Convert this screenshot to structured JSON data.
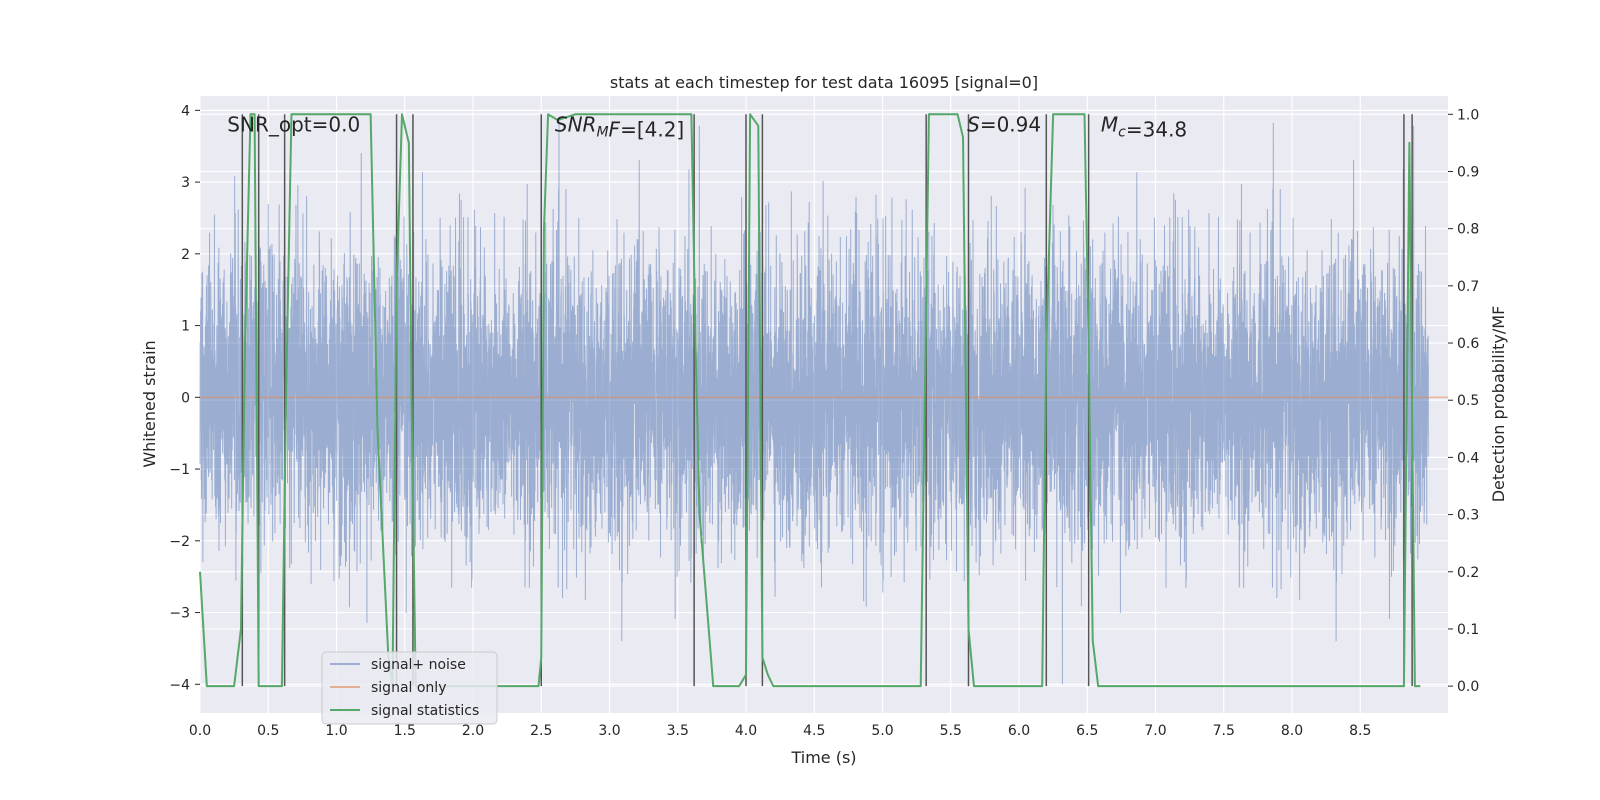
{
  "chart_data": {
    "type": "line",
    "title": "stats at each timestep for test data 16095 [signal=0]",
    "xlabel": "Time (s)",
    "ylabel": "Whitened strain",
    "y2label": "Detection probability/MF",
    "xlim": [
      0.0,
      9.0
    ],
    "ylim": [
      -4.4,
      4.2
    ],
    "y2lim": [
      -0.047,
      1.032
    ],
    "xticks": [
      "0.0",
      "0.5",
      "1.0",
      "1.5",
      "2.0",
      "2.5",
      "3.0",
      "3.5",
      "4.0",
      "4.5",
      "5.0",
      "5.5",
      "6.0",
      "6.5",
      "7.0",
      "7.5",
      "8.0",
      "8.5"
    ],
    "xtick_values": [
      0.0,
      0.5,
      1.0,
      1.5,
      2.0,
      2.5,
      3.0,
      3.5,
      4.0,
      4.5,
      5.0,
      5.5,
      6.0,
      6.5,
      7.0,
      7.5,
      8.0,
      8.5
    ],
    "yticks": [
      "−4",
      "−3",
      "−2",
      "−1",
      "0",
      "1",
      "2",
      "3",
      "4"
    ],
    "ytick_values": [
      -4,
      -3,
      -2,
      -1,
      0,
      1,
      2,
      3,
      4
    ],
    "y2ticks": [
      "0.0",
      "0.1",
      "0.2",
      "0.3",
      "0.4",
      "0.5",
      "0.6",
      "0.7",
      "0.8",
      "0.9",
      "1.0"
    ],
    "y2tick_values": [
      0.0,
      0.1,
      0.2,
      0.3,
      0.4,
      0.5,
      0.6,
      0.7,
      0.8,
      0.9,
      1.0
    ],
    "legend": {
      "location": "lower-left",
      "entries": [
        "signal+ noise",
        "signal only",
        "signal statistics"
      ]
    },
    "annotations": [
      {
        "text": "SNR_opt=0.0",
        "x": 0.2,
        "y": 3.8
      },
      {
        "segments": [
          {
            "t": "SNR",
            "style": "italic"
          },
          {
            "t": "M",
            "style": "italic-sub"
          },
          {
            "t": "F",
            "style": "italic"
          },
          {
            "t": "=[4.2]",
            "style": "normal"
          }
        ],
        "x": 2.6,
        "y": 3.8
      },
      {
        "segments": [
          {
            "t": "S",
            "style": "italic"
          },
          {
            "t": "=0.94",
            "style": "normal"
          }
        ],
        "x": 5.62,
        "y": 3.8
      },
      {
        "segments": [
          {
            "t": "M",
            "style": "italic"
          },
          {
            "t": "c",
            "style": "italic-sub"
          },
          {
            "t": "=34.8",
            "style": "normal"
          }
        ],
        "x": 6.6,
        "y": 3.8
      }
    ],
    "noise": {
      "name": "signal+ noise",
      "description": "whitened gaussian noise, sigma ~1.0, spikes up to about +3.8 / -3.7",
      "samples": 9000,
      "sigma": 1.0
    },
    "signal_only": {
      "name": "signal only",
      "value": 0.0
    },
    "vertical_lines": [
      0.31,
      0.43,
      0.62,
      1.44,
      1.56,
      2.5,
      3.62,
      4.0,
      4.12,
      5.32,
      5.63,
      6.2,
      6.51,
      8.82,
      8.88
    ],
    "series": [
      {
        "name": "signal statistics",
        "axis": "right",
        "x": [
          0.0,
          0.05,
          0.12,
          0.25,
          0.3,
          0.33,
          0.37,
          0.4,
          0.43,
          0.46,
          0.5,
          0.6,
          0.63,
          0.67,
          0.7,
          0.9,
          1.0,
          1.1,
          1.25,
          1.3,
          1.38,
          1.41,
          1.44,
          1.48,
          1.5,
          1.53,
          1.55,
          1.58,
          1.62,
          1.7,
          1.8,
          2.0,
          2.2,
          2.4,
          2.48,
          2.5,
          2.52,
          2.55,
          2.62,
          2.75,
          2.8,
          3.0,
          3.2,
          3.4,
          3.6,
          3.63,
          3.66,
          3.76,
          3.8,
          3.95,
          4.0,
          4.03,
          4.06,
          4.09,
          4.12,
          4.16,
          4.2,
          4.25,
          4.35,
          4.5,
          5.0,
          5.28,
          5.31,
          5.34,
          5.38,
          5.55,
          5.59,
          5.63,
          5.67,
          5.75,
          6.0,
          6.17,
          6.2,
          6.25,
          6.4,
          6.48,
          6.51,
          6.54,
          6.58,
          6.7,
          7.0,
          7.5,
          8.0,
          8.3,
          8.5,
          8.82,
          8.86,
          8.9,
          8.94
        ],
        "values": [
          0.2,
          0.0,
          0.0,
          0.0,
          0.1,
          0.6,
          1.0,
          1.0,
          0.0,
          0.0,
          0.0,
          0.0,
          0.5,
          1.0,
          1.0,
          1.0,
          1.0,
          1.0,
          1.0,
          0.45,
          0.05,
          0.0,
          0.7,
          1.0,
          0.98,
          0.95,
          0.5,
          0.0,
          0.0,
          0.0,
          0.0,
          0.0,
          0.0,
          0.0,
          0.0,
          0.05,
          0.8,
          1.0,
          0.99,
          1.0,
          1.0,
          1.0,
          1.0,
          1.0,
          1.0,
          0.6,
          0.3,
          0.0,
          0.0,
          0.0,
          0.02,
          1.0,
          0.99,
          0.98,
          0.05,
          0.02,
          0.0,
          0.0,
          0.0,
          0.0,
          0.0,
          0.0,
          0.5,
          1.0,
          1.0,
          1.0,
          0.96,
          0.1,
          0.0,
          0.0,
          0.0,
          0.0,
          0.6,
          1.0,
          1.0,
          1.0,
          0.6,
          0.08,
          0.0,
          0.0,
          0.0,
          0.0,
          0.0,
          0.0,
          0.0,
          0.0,
          0.95,
          0.0,
          0.0
        ]
      }
    ]
  }
}
